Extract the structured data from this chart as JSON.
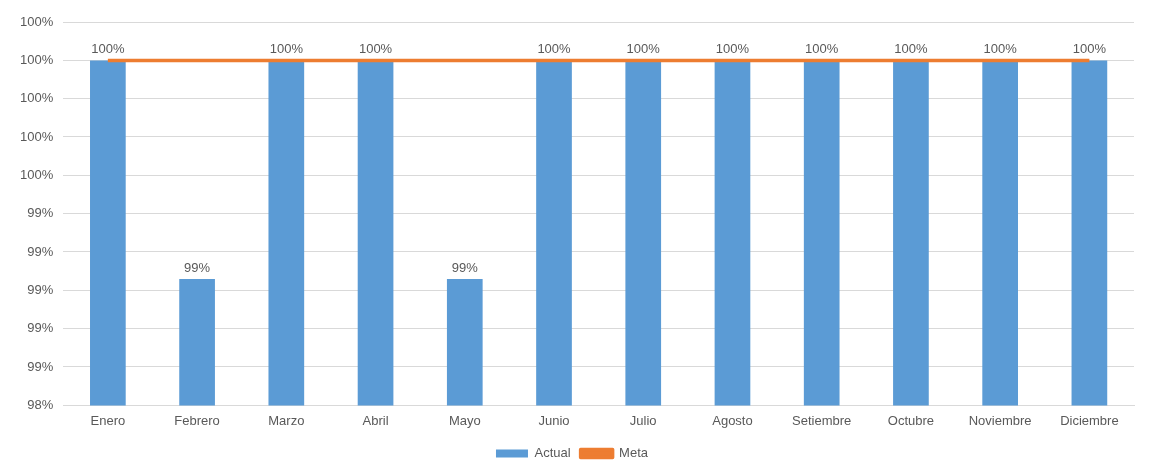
{
  "chart_data": {
    "type": "bar",
    "categories": [
      "Enero",
      "Febrero",
      "Marzo",
      "Abril",
      "Mayo",
      "Junio",
      "Julio",
      "Agosto",
      "Setiembre",
      "Octubre",
      "Noviembre",
      "Diciembre"
    ],
    "series": [
      {
        "name": "Actual",
        "color": "#5b9bd5",
        "values": [
          100,
          99.05,
          100,
          100,
          99.05,
          100,
          100,
          100,
          100,
          100,
          100,
          100
        ],
        "value_labels": [
          "100%",
          "99%",
          "100%",
          "100%",
          "99%",
          "100%",
          "100%",
          "100%",
          "100%",
          "100%",
          "100%",
          "100%"
        ]
      },
      {
        "name": "Meta",
        "type": "line",
        "color": "#ed7d31",
        "values": [
          100,
          100,
          100,
          100,
          100,
          100,
          100,
          100,
          100,
          100,
          100,
          100
        ],
        "marker": "none",
        "line_style": "solid"
      }
    ],
    "ylim": [
      98.5,
      100.167
    ],
    "yticks": [
      {
        "value": 98.5,
        "label": "98%"
      },
      {
        "value": 98.667,
        "label": "99%"
      },
      {
        "value": 98.833,
        "label": "99%"
      },
      {
        "value": 99,
        "label": "99%"
      },
      {
        "value": 99.167,
        "label": "99%"
      },
      {
        "value": 99.333,
        "label": "99%"
      },
      {
        "value": 99.5,
        "label": "100%"
      },
      {
        "value": 99.667,
        "label": "100%"
      },
      {
        "value": 99.833,
        "label": "100%"
      },
      {
        "value": 100,
        "label": "100%"
      },
      {
        "value": 100.167,
        "label": "100%"
      }
    ],
    "grid": "y",
    "legend": "bottom"
  }
}
